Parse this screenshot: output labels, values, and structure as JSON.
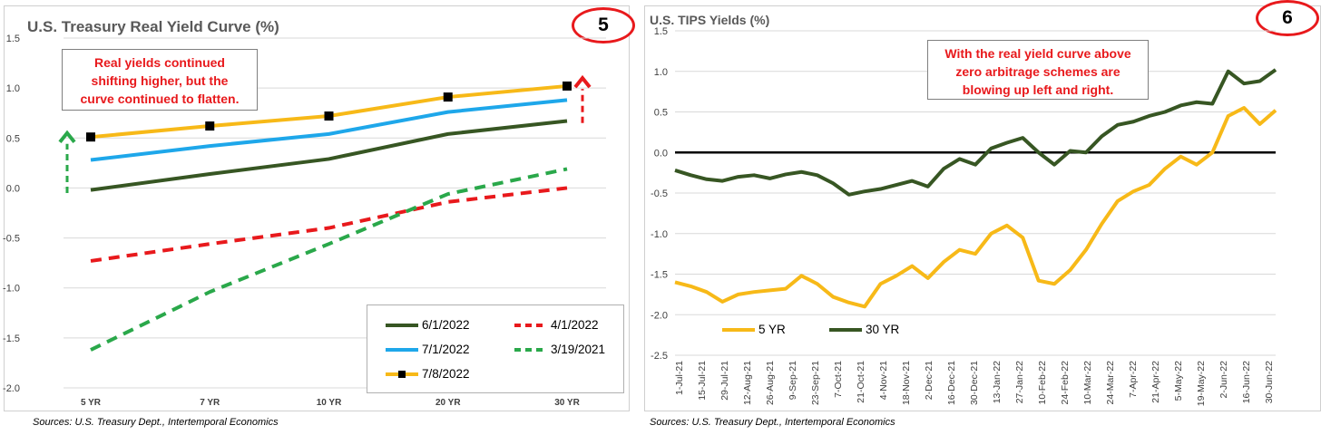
{
  "charts": {
    "left": {
      "title": "U.S. Treasury Real Yield Curve (%)",
      "badge": "5",
      "annotation": [
        "Real yields continued",
        "shifting higher, but the",
        "curve continued to flatten."
      ],
      "source": "Sources: U.S. Treasury Dept., Intertemporal Economics"
    },
    "right": {
      "title": "U.S. TIPS Yields (%)",
      "badge": "6",
      "annotation": [
        "With the real yield curve above",
        "zero arbitrage schemes are",
        "blowing up left and right."
      ],
      "source": "Sources: U.S. Treasury Dept., Intertemporal Economics"
    }
  },
  "chart_data": [
    {
      "type": "line",
      "title": "U.S. Treasury Real Yield Curve (%)",
      "categories": [
        "5 YR",
        "7 YR",
        "10 YR",
        "20 YR",
        "30 YR"
      ],
      "ylim": [
        -2.0,
        1.5
      ],
      "yticks": [
        "1.5",
        "1.0",
        "0.5",
        "0.0",
        "-0.5",
        "-1.0",
        "-1.5",
        "-2.0"
      ],
      "grid": true,
      "legend_position": "bottom-right",
      "series": [
        {
          "name": "6/1/2022",
          "color": "#375623",
          "style": "solid",
          "values": [
            -0.02,
            0.14,
            0.29,
            0.54,
            0.67
          ]
        },
        {
          "name": "4/1/2022",
          "color": "#e8191c",
          "style": "dashed",
          "values": [
            -0.73,
            -0.56,
            -0.4,
            -0.14,
            0.0
          ]
        },
        {
          "name": "7/1/2022",
          "color": "#1ea7ea",
          "style": "solid",
          "values": [
            0.28,
            0.42,
            0.54,
            0.76,
            0.88
          ]
        },
        {
          "name": "3/19/2021",
          "color": "#2aa84a",
          "style": "dashed",
          "values": [
            -1.62,
            -1.04,
            -0.56,
            -0.06,
            0.19
          ]
        },
        {
          "name": "7/8/2022",
          "color": "#f7b918",
          "style": "solid-square-markers",
          "values": [
            0.51,
            0.62,
            0.72,
            0.91,
            1.02
          ]
        }
      ],
      "arrows": [
        {
          "color": "#2aa84a",
          "category": "5 YR",
          "from": -0.05,
          "to": 0.55
        },
        {
          "color": "#e8191c",
          "category": "30 YR",
          "from": 0.65,
          "to": 1.1
        }
      ]
    },
    {
      "type": "line",
      "title": "U.S. TIPS Yields (%)",
      "ylim": [
        -2.5,
        1.5
      ],
      "yticks": [
        "1.5",
        "1.0",
        "0.5",
        "0.0",
        "-0.5",
        "-1.0",
        "-1.5",
        "-2.0",
        "-2.5"
      ],
      "xticks": [
        "1-Jul-21",
        "15-Jul-21",
        "29-Jul-21",
        "12-Aug-21",
        "26-Aug-21",
        "9-Sep-21",
        "23-Sep-21",
        "7-Oct-21",
        "21-Oct-21",
        "4-Nov-21",
        "18-Nov-21",
        "2-Dec-21",
        "16-Dec-21",
        "30-Dec-21",
        "13-Jan-22",
        "27-Jan-22",
        "10-Feb-22",
        "24-Feb-22",
        "10-Mar-22",
        "24-Mar-22",
        "7-Apr-22",
        "21-Apr-22",
        "5-May-22",
        "19-May-22",
        "2-Jun-22",
        "16-Jun-22",
        "30-Jun-22"
      ],
      "reference_line": 0.0,
      "grid": true,
      "legend_position": "bottom-left",
      "series": [
        {
          "name": "5 YR",
          "color": "#f7b918",
          "values": [
            -1.6,
            -1.65,
            -1.72,
            -1.84,
            -1.75,
            -1.72,
            -1.7,
            -1.68,
            -1.52,
            -1.62,
            -1.78,
            -1.85,
            -1.9,
            -1.62,
            -1.52,
            -1.4,
            -1.55,
            -1.35,
            -1.2,
            -1.25,
            -1.0,
            -0.9,
            -1.05,
            -1.58,
            -1.62,
            -1.45,
            -1.2,
            -0.88,
            -0.6,
            -0.48,
            -0.4,
            -0.2,
            -0.05,
            -0.15,
            0.0,
            0.45,
            0.55,
            0.35,
            0.52
          ]
        },
        {
          "name": "30 YR",
          "color": "#375623",
          "values": [
            -0.22,
            -0.28,
            -0.33,
            -0.35,
            -0.3,
            -0.28,
            -0.32,
            -0.27,
            -0.24,
            -0.28,
            -0.38,
            -0.52,
            -0.48,
            -0.45,
            -0.4,
            -0.35,
            -0.42,
            -0.2,
            -0.08,
            -0.15,
            0.05,
            0.12,
            0.18,
            0.0,
            -0.15,
            0.02,
            0.0,
            0.2,
            0.34,
            0.38,
            0.45,
            0.5,
            0.58,
            0.62,
            0.6,
            1.0,
            0.85,
            0.88,
            1.02
          ]
        }
      ]
    }
  ]
}
